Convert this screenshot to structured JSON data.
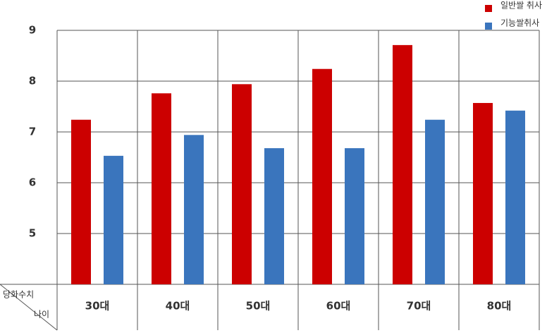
{
  "chart_data": {
    "type": "bar",
    "y_label": "당화수치",
    "x_label": "나이",
    "categories": [
      "30대",
      "40대",
      "50대",
      "60대",
      "70대",
      "80대"
    ],
    "series": [
      {
        "name": "일반쌀 취사",
        "color": "#cc0000",
        "values": [
          7.24,
          7.76,
          7.94,
          8.24,
          8.71,
          7.57
        ]
      },
      {
        "name": "기능쌀취사",
        "color": "#3a75bd",
        "values": [
          6.53,
          6.94,
          6.68,
          6.68,
          7.24,
          7.42
        ]
      }
    ],
    "ylim": [
      4,
      9
    ],
    "yticks": [
      5,
      6,
      7,
      8,
      9
    ],
    "grid": true,
    "legend": "top-right"
  }
}
